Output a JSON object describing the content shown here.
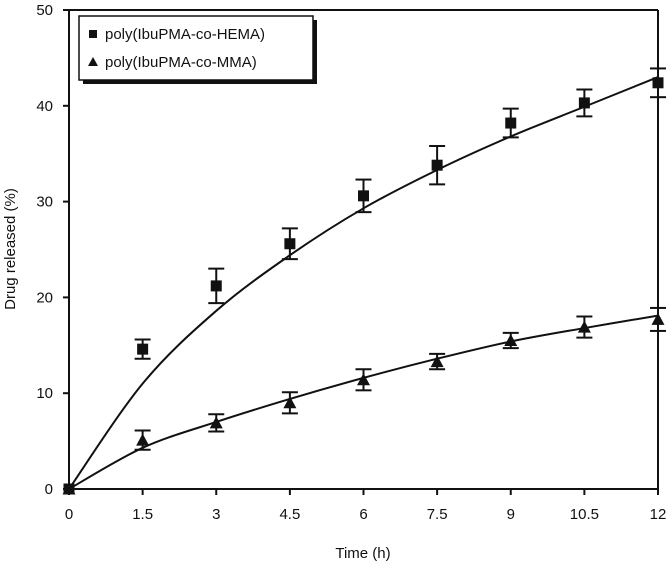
{
  "chart_data": {
    "type": "scatter",
    "title": "",
    "xlabel": "Time (h)",
    "ylabel": "Drug released (%)",
    "xlim": [
      0,
      12
    ],
    "ylim": [
      0,
      50
    ],
    "x_ticks": [
      0,
      1.5,
      3,
      4.5,
      6,
      7.5,
      9,
      10.5,
      12
    ],
    "x_tick_labels": [
      "0",
      "1.5",
      "3",
      "4.5",
      "6",
      "7.5",
      "9",
      "10.5",
      "12"
    ],
    "y_ticks": [
      0,
      10,
      20,
      30,
      40,
      50
    ],
    "y_tick_labels": [
      "0",
      "10",
      "20",
      "30",
      "40",
      "50"
    ],
    "grid": false,
    "legend_position": "upper left",
    "x": [
      0,
      1.5,
      3,
      4.5,
      6,
      7.5,
      9,
      10.5,
      12
    ],
    "series": [
      {
        "name": "poly(IbuPMA-co-HEMA)",
        "marker": "square",
        "values": [
          0,
          14.6,
          21.2,
          25.6,
          30.6,
          33.8,
          38.2,
          40.3,
          42.4
        ],
        "error": [
          0,
          1.0,
          1.8,
          1.6,
          1.7,
          2.0,
          1.5,
          1.4,
          1.5
        ],
        "fit_curve": [
          0,
          11.0,
          18.6,
          24.4,
          29.3,
          33.3,
          36.8,
          39.9,
          43.0
        ]
      },
      {
        "name": "poly(IbuPMA-co-MMA)",
        "marker": "triangle",
        "values": [
          0,
          5.1,
          6.9,
          9.0,
          11.4,
          13.3,
          15.5,
          16.9,
          17.7
        ],
        "error": [
          0,
          1.0,
          0.9,
          1.1,
          1.1,
          0.8,
          0.8,
          1.1,
          1.2
        ],
        "fit_curve": [
          0,
          4.3,
          7.0,
          9.4,
          11.6,
          13.6,
          15.4,
          16.8,
          18.1
        ]
      }
    ]
  }
}
